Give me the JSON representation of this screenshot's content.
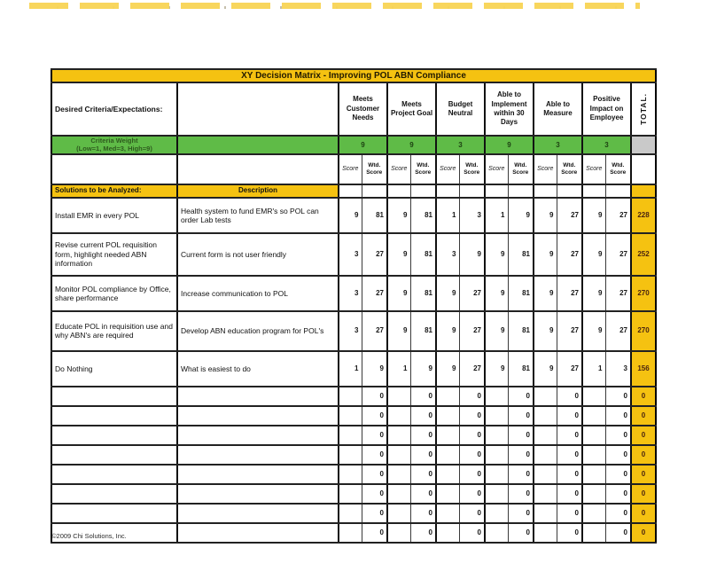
{
  "document": {
    "title": "XY Decision Matrix - Improving POL ABN Compliance",
    "copyright": "©2009 Chi Solutions, Inc."
  },
  "table": {
    "desired_criteria_label": "Desired Criteria/Expectations:",
    "criteria": [
      "Meets Customer Needs",
      "Meets Project Goal",
      "Budget Neutral",
      "Able to Implement within 30 Days",
      "Able to Measure",
      "Positive Impact on Employee"
    ],
    "total_label": "TOTAL.",
    "weight_row": {
      "label": "Criteria Weight",
      "scale": "(Low=1, Med=3, High=9)",
      "weights": [
        "9",
        "9",
        "3",
        "9",
        "3",
        "3"
      ]
    },
    "subheader": {
      "score": "Score",
      "wtd_score": "Wtd.\nScore"
    },
    "solutions_label": "Solutions to be Analyzed:",
    "description_label": "Description",
    "rows": [
      {
        "solution": "Install EMR in every POL",
        "description": "Health system to fund EMR's so POL can order Lab tests",
        "scores": [
          "9",
          "81",
          "9",
          "81",
          "1",
          "3",
          "1",
          "9",
          "9",
          "27",
          "9",
          "27"
        ],
        "total": "228"
      },
      {
        "solution": "Revise current POL requisition form, highlight needed ABN information",
        "description": "Current form is not user friendly",
        "scores": [
          "3",
          "27",
          "9",
          "81",
          "3",
          "9",
          "9",
          "81",
          "9",
          "27",
          "9",
          "27"
        ],
        "total": "252"
      },
      {
        "solution": "Monitor POL compliance by Office, share performance",
        "description": "Increase communication to POL",
        "scores": [
          "3",
          "27",
          "9",
          "81",
          "9",
          "27",
          "9",
          "81",
          "9",
          "27",
          "9",
          "27"
        ],
        "total": "270"
      },
      {
        "solution": "Educate POL in requisition use and why ABN's are required",
        "description": "Develop ABN education program for POL's",
        "scores": [
          "3",
          "27",
          "9",
          "81",
          "9",
          "27",
          "9",
          "81",
          "9",
          "27",
          "9",
          "27"
        ],
        "total": "270"
      },
      {
        "solution": "Do Nothing",
        "description": "What is easiest to do",
        "scores": [
          "1",
          "9",
          "1",
          "9",
          "9",
          "27",
          "9",
          "81",
          "9",
          "27",
          "1",
          "3"
        ],
        "total": "156"
      }
    ],
    "empty_rows": {
      "count": 8,
      "wtd_value": "0",
      "total_value": "0"
    },
    "colors": {
      "gold": "#F5C211",
      "green": "#5FBB47",
      "gray": "#C9C9C9"
    }
  }
}
